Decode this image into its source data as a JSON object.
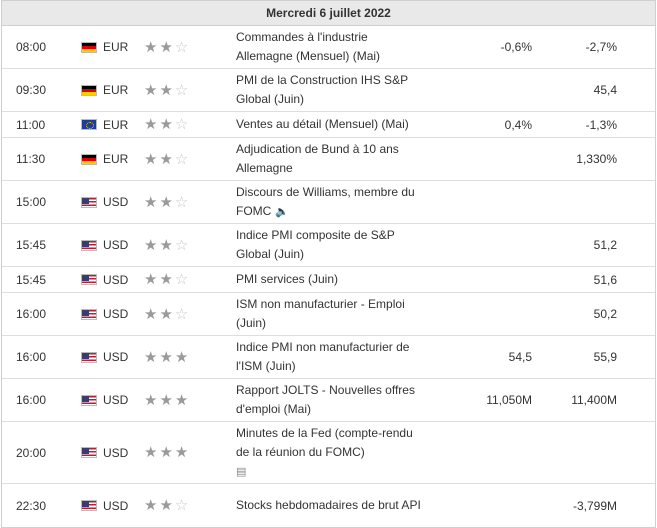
{
  "header": {
    "date": "Mercredi 6 juillet 2022"
  },
  "icons": {
    "star_filled": "star-filled-icon",
    "star_empty": "star-empty-icon",
    "speaker": "speaker-icon",
    "document": "document-icon"
  },
  "colors": {
    "header_bg": "#e9e9e9",
    "border": "#dedede",
    "star_on": "#9a9a9a",
    "star_off": "#c8c8c8"
  },
  "events": [
    {
      "time": "08:00",
      "flag": "de",
      "currency": "EUR",
      "stars": 2,
      "event": "Commandes à l'industrie Allemagne (Mensuel) (Mai)",
      "actual": "-0,6%",
      "forecast": "-2,7%"
    },
    {
      "time": "09:30",
      "flag": "de",
      "currency": "EUR",
      "stars": 2,
      "event": "PMI de la Construction IHS S&P Global (Juin)",
      "actual": "",
      "forecast": "45,4"
    },
    {
      "time": "11:00",
      "flag": "eu",
      "currency": "EUR",
      "stars": 2,
      "event": "Ventes au détail (Mensuel) (Mai)",
      "actual": "0,4%",
      "forecast": "-1,3%"
    },
    {
      "time": "11:30",
      "flag": "de",
      "currency": "EUR",
      "stars": 2,
      "event": "Adjudication de Bund à 10 ans Allemagne",
      "actual": "",
      "forecast": "1,330%"
    },
    {
      "time": "15:00",
      "flag": "us",
      "currency": "USD",
      "stars": 2,
      "event": "Discours de Williams, membre du FOMC",
      "actual": "",
      "forecast": "",
      "icon": "speaker"
    },
    {
      "time": "15:45",
      "flag": "us",
      "currency": "USD",
      "stars": 2,
      "event": "Indice PMI composite de S&P Global (Juin)",
      "actual": "",
      "forecast": "51,2"
    },
    {
      "time": "15:45",
      "flag": "us",
      "currency": "USD",
      "stars": 2,
      "event": "PMI services (Juin)",
      "actual": "",
      "forecast": "51,6"
    },
    {
      "time": "16:00",
      "flag": "us",
      "currency": "USD",
      "stars": 2,
      "event": "ISM non manufacturier - Emploi (Juin)",
      "actual": "",
      "forecast": "50,2"
    },
    {
      "time": "16:00",
      "flag": "us",
      "currency": "USD",
      "stars": 3,
      "event": "Indice PMI non manufacturier de l'ISM (Juin)",
      "actual": "54,5",
      "forecast": "55,9"
    },
    {
      "time": "16:00",
      "flag": "us",
      "currency": "USD",
      "stars": 3,
      "event": "Rapport JOLTS - Nouvelles offres d'emploi (Mai)",
      "actual": "11,050M",
      "forecast": "11,400M"
    },
    {
      "time": "20:00",
      "flag": "us",
      "currency": "USD",
      "stars": 3,
      "event": "Minutes de la Fed (compte-rendu de la réunion du FOMC)",
      "actual": "",
      "forecast": "",
      "icon": "document"
    },
    {
      "time": "22:30",
      "flag": "us",
      "currency": "USD",
      "stars": 2,
      "event": "Stocks hebdomadaires de brut API",
      "actual": "",
      "forecast": "-3,799M"
    }
  ]
}
